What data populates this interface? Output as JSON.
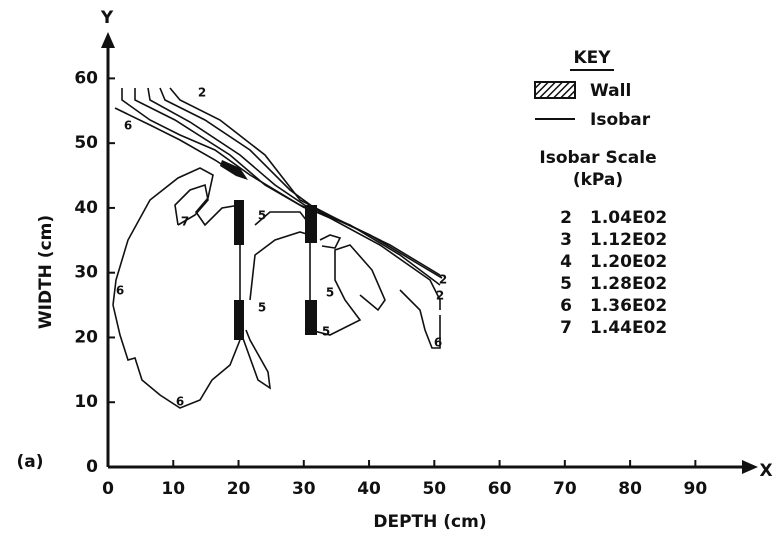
{
  "chart_data": {
    "type": "contour",
    "x_axis_label": "DEPTH (cm)",
    "y_axis_label": "WIDTH (cm)",
    "x_axis_letter": "X",
    "y_axis_letter": "Y",
    "panel_label": "(a)",
    "xlim": [
      0,
      95
    ],
    "ylim": [
      0,
      65
    ],
    "xticks": [
      0,
      10,
      20,
      30,
      40,
      50,
      60,
      70,
      80,
      90
    ],
    "yticks": [
      0,
      10,
      20,
      30,
      40,
      50,
      60
    ],
    "grid": false,
    "contour_labels": [
      "2",
      "6",
      "7",
      "6",
      "6",
      "5",
      "5",
      "5",
      "5",
      "2",
      "6",
      "2"
    ],
    "key": {
      "title": "KEY",
      "wall": "Wall",
      "isobar": "Isobar",
      "scale_title": "Isobar Scale",
      "scale_units": "(kPa)",
      "scale": [
        {
          "level": 2,
          "label": "1.04E02"
        },
        {
          "level": 3,
          "label": "1.12E02"
        },
        {
          "level": 4,
          "label": "1.20E02"
        },
        {
          "level": 5,
          "label": "1.28E02"
        },
        {
          "level": 6,
          "label": "1.36E02"
        },
        {
          "level": 7,
          "label": "1.44E02"
        }
      ]
    }
  }
}
